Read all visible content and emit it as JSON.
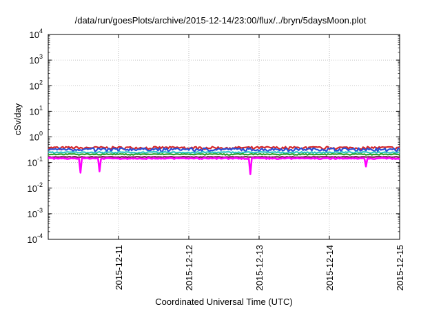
{
  "chart_data": {
    "type": "line",
    "title": "/data/run/goesPlots/archive/2015-12-14/23:00/flux/../bryn/5daysMoon.plot",
    "xlabel": "Coordinated Universal Time (UTC)",
    "ylabel": "cSv/day",
    "yscale": "log",
    "ylim": [
      0.0001,
      10000
    ],
    "y_ticks": [
      {
        "base": "10",
        "exp": "-4",
        "value": 0.0001
      },
      {
        "base": "10",
        "exp": "-3",
        "value": 0.001
      },
      {
        "base": "10",
        "exp": "-2",
        "value": 0.01
      },
      {
        "base": "10",
        "exp": "-1",
        "value": 0.1
      },
      {
        "base": "10",
        "exp": "0",
        "value": 1
      },
      {
        "base": "10",
        "exp": "1",
        "value": 10
      },
      {
        "base": "10",
        "exp": "2",
        "value": 100
      },
      {
        "base": "10",
        "exp": "3",
        "value": 1000
      },
      {
        "base": "10",
        "exp": "4",
        "value": 10000
      }
    ],
    "xlim": [
      "2015-12-10 00:00",
      "2015-12-15 00:00"
    ],
    "x_ticks": [
      "2015-12-11",
      "2015-12-12",
      "2015-12-13",
      "2015-12-14",
      "2015-12-15"
    ],
    "grid": true,
    "series": [
      {
        "color": "#d62728",
        "level": 0.38,
        "spread": 0.1
      },
      {
        "color": "#2a4fd6",
        "level": 0.33,
        "spread": 0.12
      },
      {
        "color": "#2ec4c4",
        "level": 0.25,
        "spread": 0.05
      },
      {
        "color": "#2ca02c",
        "level": 0.21,
        "spread": 0.04
      },
      {
        "color": "#7b1f4f",
        "level": 0.165,
        "spread": 0.03
      },
      {
        "color": "#ff00ff",
        "level": 0.145,
        "spread": 0.04,
        "dips": [
          {
            "date": "2015-12-10 11:00",
            "value": 0.04
          },
          {
            "date": "2015-12-10 17:30",
            "value": 0.045
          },
          {
            "date": "2015-12-12 21:00",
            "value": 0.035
          },
          {
            "date": "2015-12-14 12:30",
            "value": 0.07
          }
        ]
      }
    ]
  }
}
